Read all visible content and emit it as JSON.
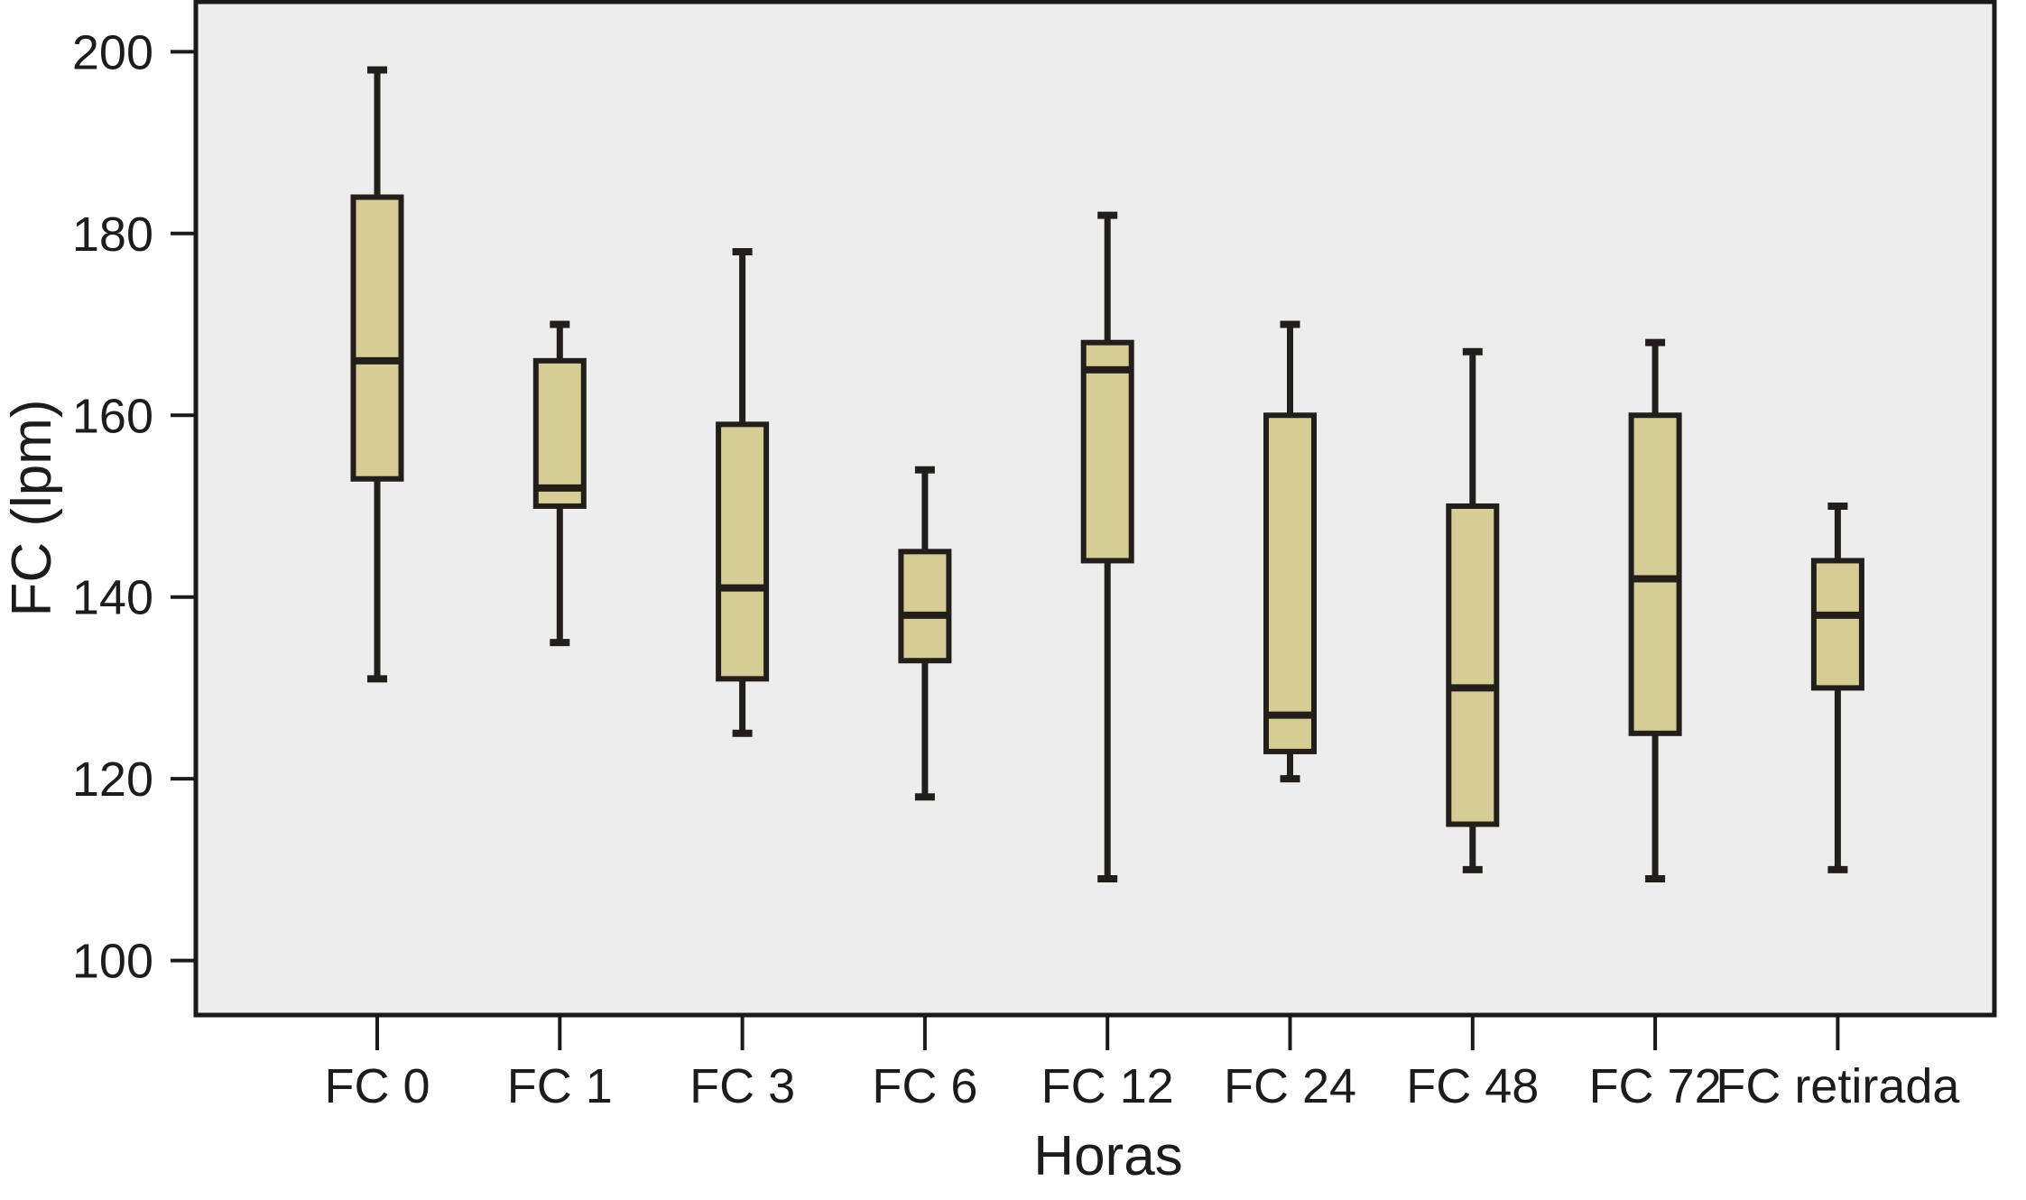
{
  "chart_data": {
    "type": "boxplot",
    "title": "",
    "xlabel": "Horas",
    "ylabel": "FC (lpm)",
    "categories": [
      "FC 0",
      "FC 1",
      "FC 3",
      "FC 6",
      "FC 12",
      "FC 24",
      "FC 48",
      "FC 72",
      "FC retirada"
    ],
    "series": [
      {
        "name": "FC",
        "boxes": [
          {
            "category": "FC 0",
            "min": 131,
            "q1": 153,
            "median": 166,
            "q3": 184,
            "max": 198
          },
          {
            "category": "FC 1",
            "min": 135,
            "q1": 150,
            "median": 152,
            "q3": 166,
            "max": 170
          },
          {
            "category": "FC 3",
            "min": 125,
            "q1": 131,
            "median": 141,
            "q3": 159,
            "max": 178
          },
          {
            "category": "FC 6",
            "min": 118,
            "q1": 133,
            "median": 138,
            "q3": 145,
            "max": 154
          },
          {
            "category": "FC 12",
            "min": 109,
            "q1": 144,
            "median": 165,
            "q3": 168,
            "max": 182
          },
          {
            "category": "FC 24",
            "min": 120,
            "q1": 123,
            "median": 127,
            "q3": 160,
            "max": 170
          },
          {
            "category": "FC 48",
            "min": 110,
            "q1": 115,
            "median": 130,
            "q3": 150,
            "max": 167
          },
          {
            "category": "FC 72",
            "min": 109,
            "q1": 125,
            "median": 142,
            "q3": 160,
            "max": 168
          },
          {
            "category": "FC retirada",
            "min": 110,
            "q1": 130,
            "median": 138,
            "q3": 144,
            "max": 150
          }
        ]
      }
    ],
    "yticks": [
      100,
      120,
      140,
      160,
      180,
      200
    ],
    "ylim": [
      94.5,
      205
    ],
    "grid": false,
    "legend": false,
    "colors": {
      "box_fill": "#d5cc96",
      "line": "#221e19",
      "axis": "#1a1a1a",
      "plot_background": "#ededed",
      "page_background": "#ffffff"
    }
  }
}
